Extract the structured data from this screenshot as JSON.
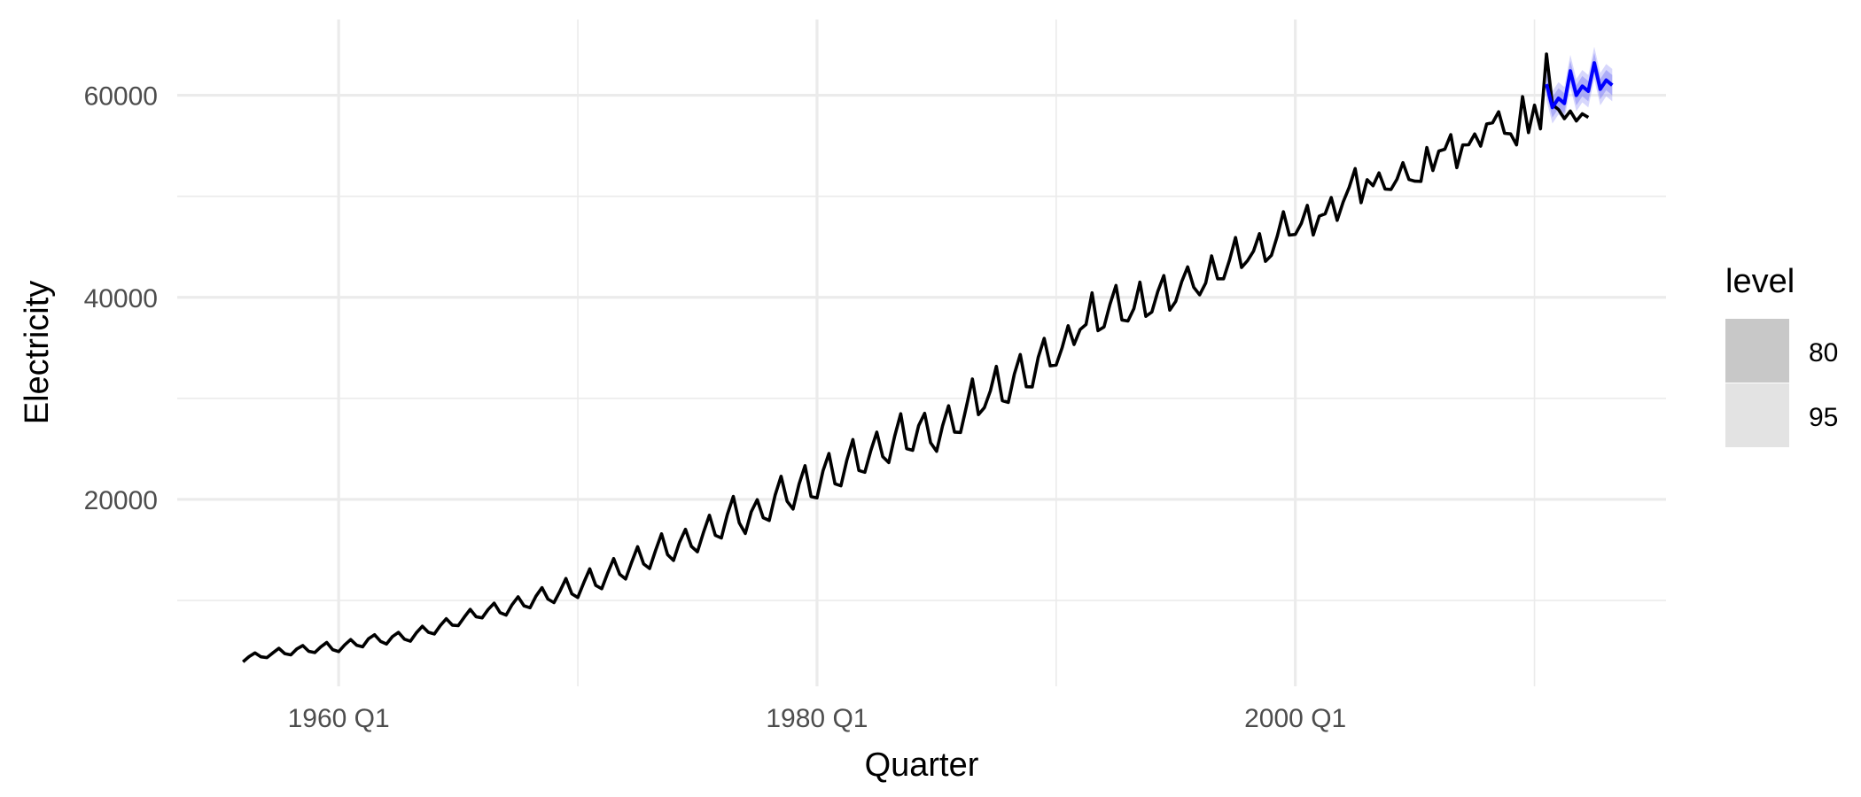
{
  "chart_data": {
    "type": "line",
    "xlabel": "Quarter",
    "ylabel": "Electricity",
    "x_ticks": [
      "1960 Q1",
      "1980 Q1",
      "2000 Q1"
    ],
    "y_ticks": [
      "20000",
      "40000",
      "60000"
    ],
    "ylim": [
      1500,
      67500
    ],
    "xlim": [
      "1953 Q2",
      "2015 Q3"
    ],
    "grid": true,
    "legend": {
      "title": "level",
      "position": "right",
      "entries": [
        {
          "label": "80",
          "color": "#c8c8c8"
        },
        {
          "label": "95",
          "color": "#e3e3e3"
        }
      ]
    },
    "series": [
      {
        "start": "1956 Q1",
        "color": "#000000",
        "values": [
          3923,
          4436,
          4806,
          4418,
          4339,
          4811,
          5259,
          4735,
          4608,
          5196,
          5536,
          4963,
          4842,
          5388,
          5842,
          5126,
          4936,
          5589,
          6132,
          5569,
          5412,
          6215,
          6601,
          5953,
          5677,
          6425,
          6836,
          6165,
          5963,
          6800,
          7440,
          6844,
          6678,
          7522,
          8191,
          7560,
          7504,
          8342,
          9113,
          8379,
          8271,
          9095,
          9734,
          8794,
          8544,
          9573,
          10358,
          9469,
          9274,
          10425,
          11268,
          10131,
          9787,
          10903,
          12170,
          10653,
          10289,
          11765,
          13125,
          11485,
          11157,
          12726,
          14137,
          12588,
          12125,
          13787,
          15317,
          13614,
          13158,
          14950,
          16595,
          14532,
          13959,
          15743,
          17036,
          15349,
          14816,
          16700,
          18436,
          16442,
          16178,
          18490,
          20293,
          17678,
          16632,
          18770,
          19972,
          18192,
          17919,
          20424,
          22291,
          19816,
          19050,
          21510,
          23334,
          20282,
          20150,
          22822,
          24539,
          21549,
          21345,
          23922,
          25921,
          22857,
          22687,
          24845,
          26654,
          24232,
          23651,
          26261,
          28476,
          25021,
          24861,
          27294,
          28517,
          25609,
          24760,
          27280,
          29265,
          26660,
          26625,
          29222,
          31912,
          28387,
          29079,
          30748,
          33170,
          29771,
          29603,
          32393,
          34343,
          31155,
          31133,
          34067,
          35941,
          33224,
          33295,
          35037,
          37189,
          35336,
          36802,
          37310,
          40443,
          36698,
          37070,
          39305,
          41169,
          37763,
          37652,
          38881,
          41504,
          38120,
          38551,
          40585,
          42150,
          38732,
          39592,
          41555,
          43013,
          41004,
          40248,
          41409,
          44096,
          41840,
          41833,
          43713,
          45919,
          42962,
          43624,
          44572,
          46302,
          43565,
          44148,
          46089,
          48468,
          46159,
          46224,
          47302,
          49101,
          46170,
          48042,
          48267,
          49878,
          47624,
          49441,
          50869,
          52736,
          49362,
          51643,
          51050,
          52310,
          50723,
          50674,
          51691,
          53327,
          51663,
          51496,
          51480,
          54824,
          52546,
          54478,
          54655,
          56095,
          52838,
          55078,
          55099,
          56171,
          54967,
          57161,
          57281,
          58365,
          56239,
          56176,
          55090,
          59864,
          56308,
          59018,
          56671,
          64085,
          59069,
          58591,
          57687,
          58435,
          57451,
          58162,
          57807
        ]
      }
    ],
    "forecast": {
      "start": "2010 Q3",
      "color": "#0000ff",
      "band_color": "#7b7bf5",
      "mean": [
        61100,
        58800,
        59700,
        59200,
        62400,
        60000,
        60900,
        60400,
        63200,
        60600,
        61500,
        61000
      ],
      "lo80": [
        60100,
        57800,
        58700,
        58200,
        61400,
        59000,
        59900,
        59400,
        62200,
        59600,
        60500,
        60000
      ],
      "hi80": [
        62100,
        59800,
        60700,
        60200,
        63400,
        61000,
        61900,
        61400,
        64200,
        61600,
        62500,
        62000
      ],
      "lo95": [
        59500,
        57200,
        58100,
        57600,
        60800,
        58400,
        59300,
        58800,
        61600,
        59000,
        59900,
        59400
      ],
      "hi95": [
        62700,
        60400,
        61300,
        60800,
        64000,
        61600,
        62500,
        62000,
        64800,
        62200,
        63100,
        62600
      ]
    }
  }
}
